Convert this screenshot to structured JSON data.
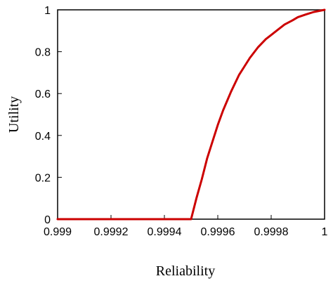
{
  "chart_data": {
    "type": "line",
    "title": "",
    "xlabel": "Reliability",
    "ylabel": "Utility",
    "xlim": [
      0.999,
      1
    ],
    "ylim": [
      0,
      1
    ],
    "grid": false,
    "legend": "none",
    "x_ticks": [
      "0.999",
      "0.9992",
      "0.9994",
      "0.9996",
      "0.9998",
      "1"
    ],
    "y_ticks": [
      "0",
      "0.2",
      "0.4",
      "0.6",
      "0.8",
      "1"
    ],
    "line_color": "#cc0000",
    "series": [
      {
        "x": [
          0.999,
          0.9993,
          0.99945,
          0.9995,
          0.99952,
          0.99954,
          0.99956,
          0.99958,
          0.9996,
          0.99962,
          0.99965,
          0.99968,
          0.9997,
          0.99972,
          0.99975,
          0.99978,
          0.9998,
          0.99982,
          0.99985,
          0.99988,
          0.9999,
          0.99993,
          0.99996,
          1.0
        ],
        "y": [
          0,
          0,
          0,
          0,
          0.1,
          0.19,
          0.29,
          0.37,
          0.45,
          0.52,
          0.61,
          0.69,
          0.73,
          0.77,
          0.82,
          0.86,
          0.88,
          0.9,
          0.93,
          0.95,
          0.965,
          0.978,
          0.99,
          1.0
        ]
      }
    ]
  }
}
